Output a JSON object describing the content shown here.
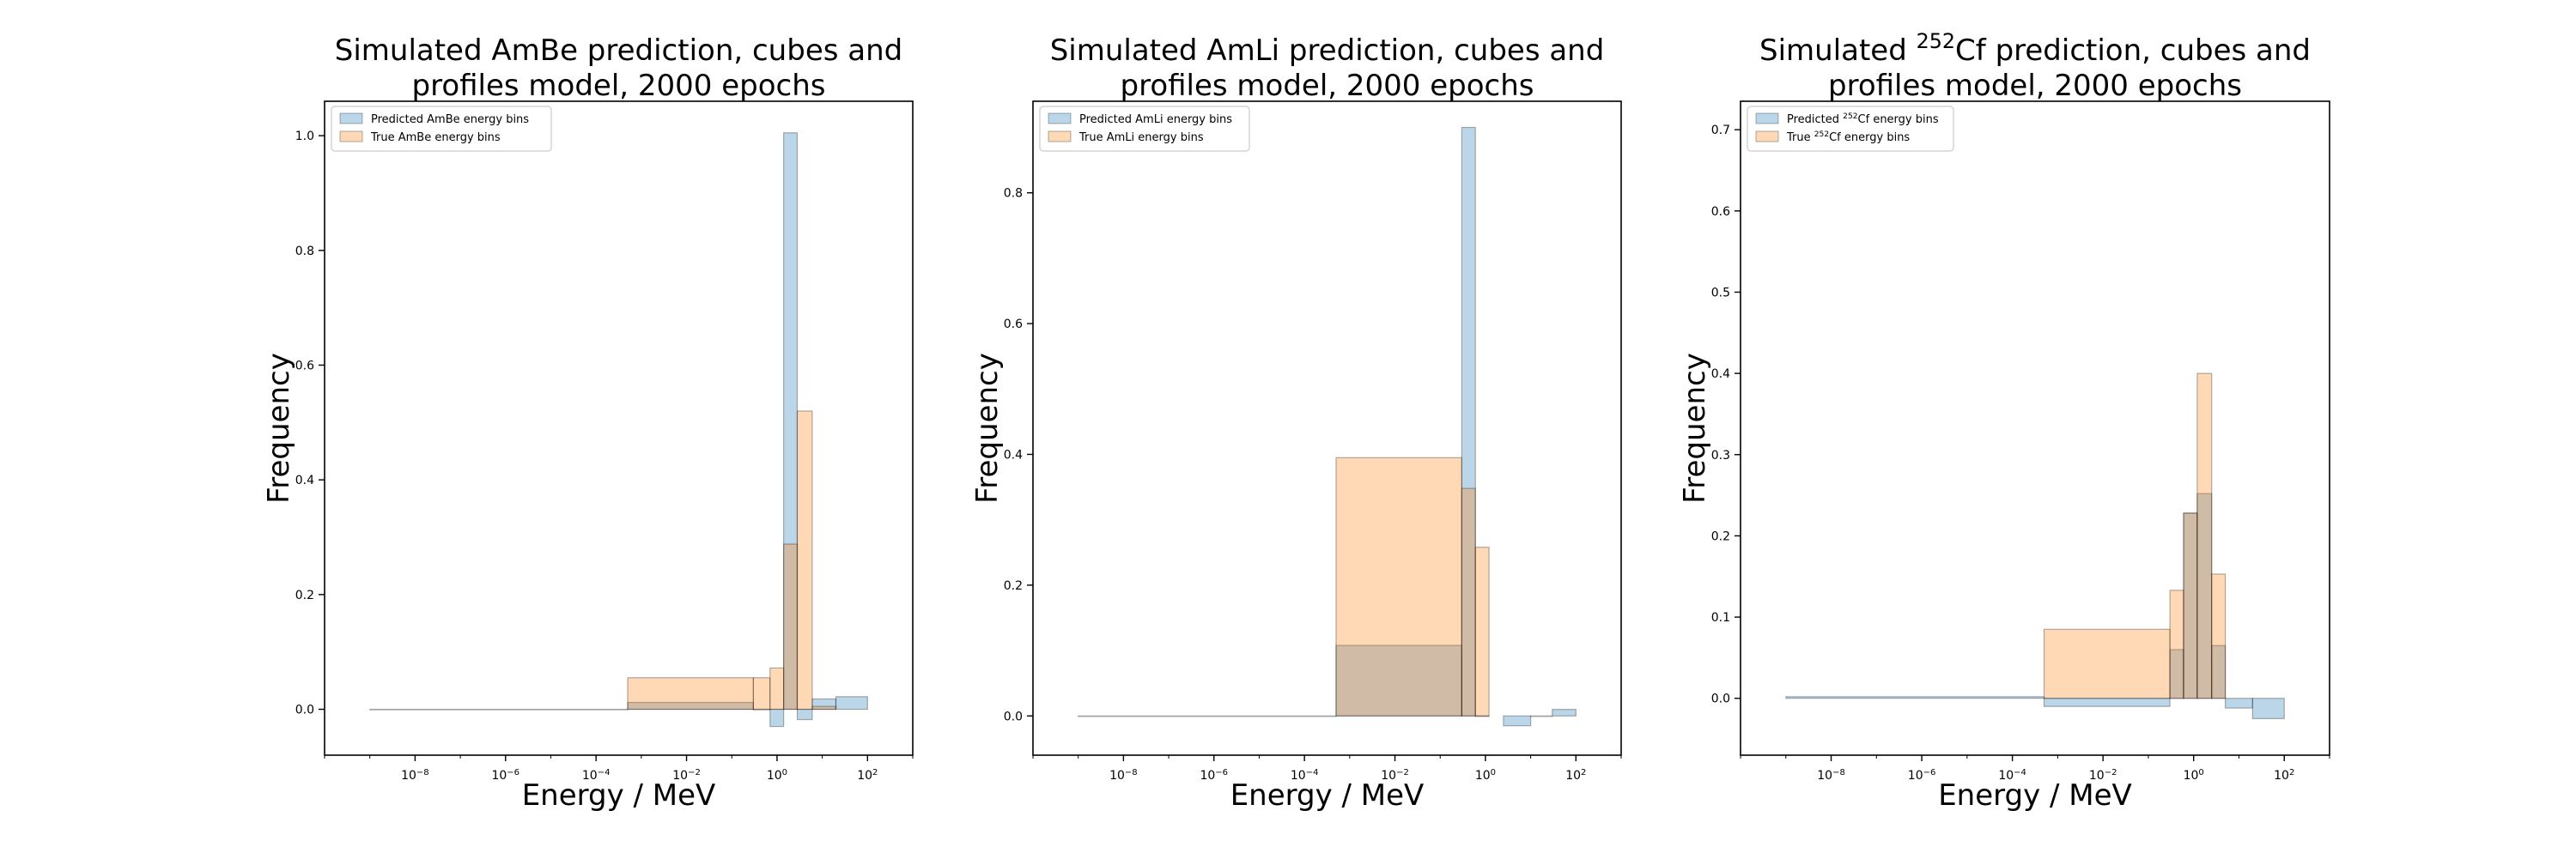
{
  "chart_data": [
    {
      "type": "histogram",
      "title": "Simulated AmBe prediction, cubes and profiles model, 2000 epochs",
      "title_lines": [
        "Simulated AmBe prediction, cubes and",
        "profiles model, 2000 epochs"
      ],
      "xlabel": "Energy / MeV",
      "ylabel": "Frequency",
      "xscale": "log",
      "xlim": [
        1e-10,
        1000
      ],
      "ylim": [
        -0.08,
        1.06
      ],
      "xticks": [
        -8,
        -6,
        -4,
        -2,
        0,
        2
      ],
      "yticks": [
        0.0,
        0.2,
        0.4,
        0.6,
        0.8,
        1.0
      ],
      "ytick_labels": [
        "0.0",
        "0.2",
        "0.4",
        "0.6",
        "0.8",
        "1.0"
      ],
      "legend_position": "upper-left",
      "grid": false,
      "series": [
        {
          "name": "Predicted AmBe energy bins",
          "color": "#1f77b4",
          "bins": [
            {
              "x0": 1e-09,
              "x1": 0.0005,
              "value": 0.0
            },
            {
              "x0": 0.0005,
              "x1": 0.3,
              "value": 0.012
            },
            {
              "x0": 0.3,
              "x1": 0.7,
              "value": 0.0
            },
            {
              "x0": 0.7,
              "x1": 1.4,
              "value": -0.03
            },
            {
              "x0": 1.4,
              "x1": 2.8,
              "value": 1.005
            },
            {
              "x0": 2.8,
              "x1": 6.0,
              "value": -0.018
            },
            {
              "x0": 6.0,
              "x1": 20.0,
              "value": 0.018
            },
            {
              "x0": 20.0,
              "x1": 100.0,
              "value": 0.022
            }
          ]
        },
        {
          "name": "True AmBe energy bins",
          "color": "#ff7f0e",
          "bins": [
            {
              "x0": 0.0005,
              "x1": 0.3,
              "value": 0.055
            },
            {
              "x0": 0.3,
              "x1": 0.7,
              "value": 0.055
            },
            {
              "x0": 0.7,
              "x1": 1.4,
              "value": 0.072
            },
            {
              "x0": 1.4,
              "x1": 2.8,
              "value": 0.288
            },
            {
              "x0": 2.8,
              "x1": 6.0,
              "value": 0.52
            },
            {
              "x0": 6.0,
              "x1": 20.0,
              "value": 0.005
            }
          ]
        }
      ]
    },
    {
      "type": "histogram",
      "title": "Simulated AmLi prediction, cubes and profiles model, 2000 epochs",
      "title_lines": [
        "Simulated AmLi prediction, cubes and",
        "profiles model, 2000 epochs"
      ],
      "xlabel": "Energy / MeV",
      "ylabel": "Frequency",
      "xscale": "log",
      "xlim": [
        1e-10,
        1000
      ],
      "ylim": [
        -0.06,
        0.94
      ],
      "xticks": [
        -8,
        -6,
        -4,
        -2,
        0,
        2
      ],
      "yticks": [
        0.0,
        0.2,
        0.4,
        0.6,
        0.8
      ],
      "ytick_labels": [
        "0.0",
        "0.2",
        "0.4",
        "0.6",
        "0.8"
      ],
      "legend_position": "upper-left",
      "grid": false,
      "series": [
        {
          "name": "Predicted AmLi energy bins",
          "color": "#1f77b4",
          "bins": [
            {
              "x0": 1e-09,
              "x1": 0.0005,
              "value": 0.0
            },
            {
              "x0": 0.0005,
              "x1": 0.3,
              "value": 0.108
            },
            {
              "x0": 0.3,
              "x1": 0.6,
              "value": 0.9
            },
            {
              "x0": 0.6,
              "x1": 1.2,
              "value": 0.0
            },
            {
              "x0": 2.5,
              "x1": 10.0,
              "value": -0.015
            },
            {
              "x0": 10.0,
              "x1": 30.0,
              "value": 0.0
            },
            {
              "x0": 30.0,
              "x1": 100.0,
              "value": 0.01
            }
          ]
        },
        {
          "name": "True AmLi energy bins",
          "color": "#ff7f0e",
          "bins": [
            {
              "x0": 0.0005,
              "x1": 0.3,
              "value": 0.395
            },
            {
              "x0": 0.3,
              "x1": 0.6,
              "value": 0.348
            },
            {
              "x0": 0.6,
              "x1": 1.2,
              "value": 0.258
            }
          ]
        }
      ]
    },
    {
      "type": "histogram",
      "title": "Simulated ²⁵²Cf prediction, cubes and profiles model, 2000 epochs",
      "title_lines": [
        "Simulated ²⁵²Cf prediction, cubes and",
        "profiles model, 2000 epochs"
      ],
      "xlabel": "Energy / MeV",
      "ylabel": "Frequency",
      "xscale": "log",
      "xlim": [
        1e-10,
        1000
      ],
      "ylim": [
        -0.07,
        0.735
      ],
      "xticks": [
        -8,
        -6,
        -4,
        -2,
        0,
        2
      ],
      "yticks": [
        0.0,
        0.1,
        0.2,
        0.3,
        0.4,
        0.5,
        0.6,
        0.7
      ],
      "ytick_labels": [
        "0.0",
        "0.1",
        "0.2",
        "0.3",
        "0.4",
        "0.5",
        "0.6",
        "0.7"
      ],
      "legend_position": "upper-left",
      "grid": false,
      "series": [
        {
          "name": "Predicted ²⁵²Cf energy bins",
          "color": "#1f77b4",
          "bins": [
            {
              "x0": 1e-09,
              "x1": 0.0005,
              "value": 0.002
            },
            {
              "x0": 0.0005,
              "x1": 0.3,
              "value": -0.01
            },
            {
              "x0": 0.3,
              "x1": 0.6,
              "value": 0.06
            },
            {
              "x0": 0.6,
              "x1": 1.2,
              "value": 0.228
            },
            {
              "x0": 1.2,
              "x1": 2.5,
              "value": 0.252
            },
            {
              "x0": 2.5,
              "x1": 5.0,
              "value": 0.065
            },
            {
              "x0": 5.0,
              "x1": 20.0,
              "value": -0.012
            },
            {
              "x0": 20.0,
              "x1": 100.0,
              "value": -0.025
            }
          ]
        },
        {
          "name": "True ²⁵²Cf energy bins",
          "color": "#ff7f0e",
          "bins": [
            {
              "x0": 0.0005,
              "x1": 0.3,
              "value": 0.085
            },
            {
              "x0": 0.3,
              "x1": 0.6,
              "value": 0.133
            },
            {
              "x0": 0.6,
              "x1": 1.2,
              "value": 0.228
            },
            {
              "x0": 1.2,
              "x1": 2.5,
              "value": 0.4
            },
            {
              "x0": 2.5,
              "x1": 5.0,
              "value": 0.153
            }
          ]
        }
      ]
    }
  ]
}
